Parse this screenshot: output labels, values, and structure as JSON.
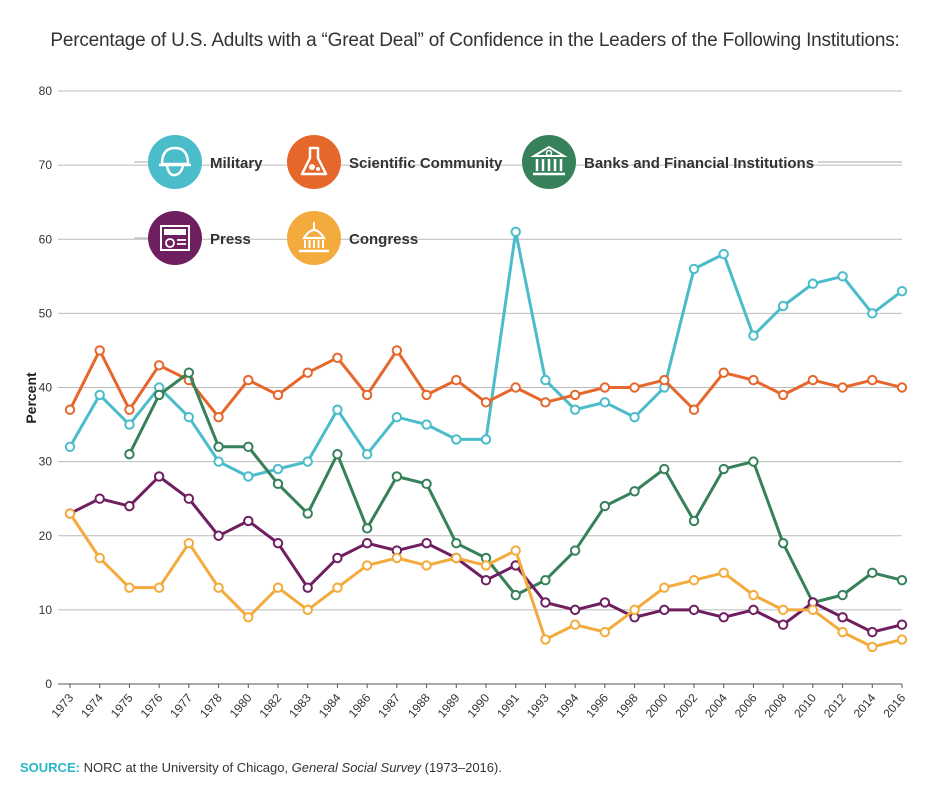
{
  "title": "Percentage of U.S. Adults with a “Great Deal” of Confidence in the Leaders of the Following Institutions:",
  "source": {
    "label": "SOURCE:",
    "text_before": " NORC at the University of Chicago, ",
    "italic": "General Social Survey",
    "text_after": " (1973–2016)."
  },
  "chart_data": {
    "type": "line",
    "title": "Percentage of U.S. Adults with a “Great Deal” of Confidence in the Leaders of the Following Institutions:",
    "xlabel": "",
    "ylabel": "Percent",
    "ylim": [
      0,
      80
    ],
    "yticks": [
      0,
      10,
      20,
      30,
      40,
      50,
      60,
      70,
      80
    ],
    "grid": true,
    "legend_position": "top-left",
    "categories": [
      "1973",
      "1974",
      "1975",
      "1976",
      "1977",
      "1978",
      "1980",
      "1982",
      "1983",
      "1984",
      "1986",
      "1987",
      "1988",
      "1989",
      "1990",
      "1991",
      "1993",
      "1994",
      "1996",
      "1998",
      "2000",
      "2002",
      "2004",
      "2006",
      "2008",
      "2010",
      "2012",
      "2014",
      "2016"
    ],
    "series": [
      {
        "name": "Military",
        "color": "#4bbcc9",
        "icon": "helmet-icon",
        "values": [
          32,
          39,
          35,
          40,
          36,
          30,
          28,
          29,
          30,
          37,
          31,
          36,
          35,
          33,
          33,
          61,
          41,
          37,
          38,
          36,
          40,
          56,
          58,
          47,
          51,
          54,
          55,
          50,
          53
        ]
      },
      {
        "name": "Scientific Community",
        "color": "#e5672c",
        "icon": "flask-icon",
        "values": [
          37,
          45,
          37,
          43,
          41,
          36,
          41,
          39,
          42,
          44,
          39,
          45,
          39,
          41,
          38,
          40,
          38,
          39,
          40,
          40,
          41,
          37,
          42,
          41,
          39,
          41,
          40,
          41,
          40
        ]
      },
      {
        "name": "Banks and Financial Institutions",
        "color": "#36805a",
        "icon": "bank-icon",
        "values": [
          null,
          null,
          31,
          39,
          42,
          32,
          32,
          27,
          23,
          31,
          21,
          28,
          27,
          19,
          17,
          12,
          14,
          18,
          24,
          26,
          29,
          22,
          29,
          30,
          19,
          11,
          12,
          15,
          14
        ]
      },
      {
        "name": "Press",
        "color": "#6e1f60",
        "icon": "newspaper-icon",
        "values": [
          23,
          25,
          24,
          28,
          25,
          20,
          22,
          19,
          13,
          17,
          19,
          18,
          19,
          17,
          14,
          16,
          11,
          10,
          11,
          9,
          10,
          10,
          9,
          10,
          8,
          11,
          9,
          7,
          8
        ]
      },
      {
        "name": "Congress",
        "color": "#f2ab3c",
        "icon": "capitol-icon",
        "values": [
          23,
          17,
          13,
          13,
          19,
          13,
          9,
          13,
          10,
          13,
          16,
          17,
          16,
          17,
          16,
          18,
          6,
          8,
          7,
          10,
          13,
          14,
          15,
          12,
          10,
          10,
          7,
          5,
          6
        ]
      }
    ]
  }
}
